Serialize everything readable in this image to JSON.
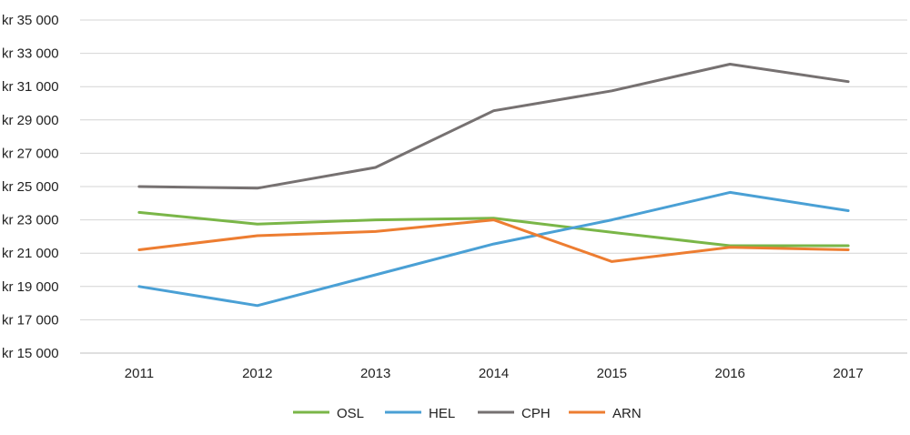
{
  "chart_data": {
    "type": "line",
    "title": "",
    "xlabel": "",
    "ylabel": "",
    "categories": [
      "2011",
      "2012",
      "2013",
      "2014",
      "2015",
      "2016",
      "2017"
    ],
    "ylim": [
      15000,
      35000
    ],
    "yticks": [
      15000,
      17000,
      19000,
      21000,
      23000,
      25000,
      27000,
      29000,
      31000,
      33000,
      35000
    ],
    "ytick_labels": [
      "kr 15 000",
      "kr 17 000",
      "kr 19 000",
      "kr 21 000",
      "kr 23 000",
      "kr 25 000",
      "kr 27 000",
      "kr 29 000",
      "kr 31 000",
      "kr 33 000",
      "kr 35 000"
    ],
    "grid": true,
    "legend_position": "bottom",
    "series": [
      {
        "name": "OSL",
        "color": "#7ab648",
        "values": [
          23450,
          22750,
          23000,
          23100,
          22250,
          21450,
          21450
        ]
      },
      {
        "name": "HEL",
        "color": "#4aa0d5",
        "values": [
          19000,
          17850,
          19700,
          21550,
          23000,
          24650,
          23550
        ]
      },
      {
        "name": "CPH",
        "color": "#767171",
        "values": [
          25000,
          24900,
          26150,
          29550,
          30750,
          32350,
          31300
        ]
      },
      {
        "name": "ARN",
        "color": "#ed7d31",
        "values": [
          21200,
          22050,
          22300,
          23000,
          20500,
          21350,
          21200
        ]
      }
    ]
  }
}
